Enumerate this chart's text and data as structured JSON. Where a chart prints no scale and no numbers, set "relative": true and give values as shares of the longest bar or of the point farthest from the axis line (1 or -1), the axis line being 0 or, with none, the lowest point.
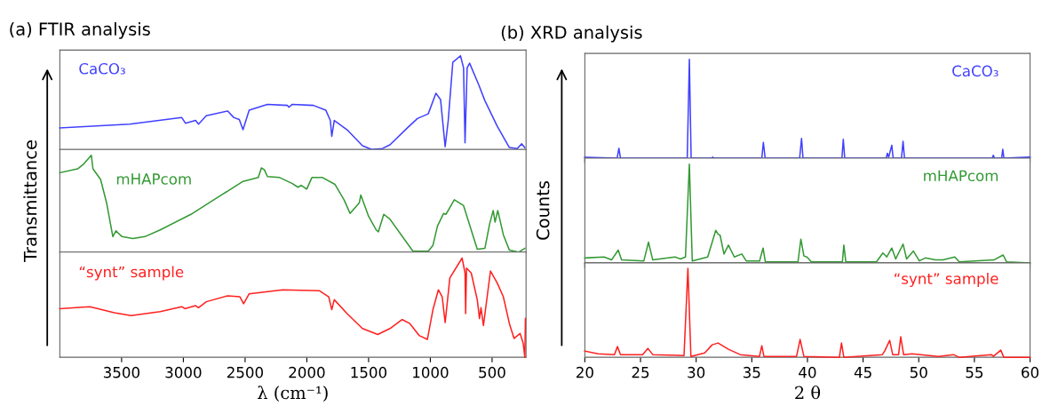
{
  "chart_data": [
    {
      "type": "line",
      "relative": true,
      "title": "(a) FTIR analysis",
      "xlim": [
        4000,
        225
      ],
      "xticks": [
        3500,
        3000,
        2500,
        2000,
        1500,
        1000,
        500
      ],
      "tick_labels": false,
      "series": [
        {
          "name": "CaCO₃",
          "color": "#4040ff",
          "x": [
            4000,
            3435,
            3013,
            2983,
            2901,
            2877,
            2814,
            2641,
            2591,
            2547,
            2517,
            2467,
            2319,
            2157,
            2145,
            2120,
            1947,
            1847,
            1810,
            1798,
            1778,
            1674,
            1550,
            1475,
            1388,
            1327,
            1178,
            1104,
            1017,
            955,
            917,
            880,
            855,
            818,
            756,
            731,
            719,
            702,
            682,
            608,
            558,
            459,
            360,
            297,
            260,
            235
          ],
          "values": [
            0.23,
            0.27,
            0.34,
            0.28,
            0.31,
            0.27,
            0.36,
            0.41,
            0.34,
            0.32,
            0.21,
            0.42,
            0.48,
            0.47,
            0.45,
            0.48,
            0.47,
            0.42,
            0.31,
            0.14,
            0.31,
            0.21,
            0.04,
            0,
            0.01,
            0.05,
            0.24,
            0.33,
            0.38,
            0.6,
            0.53,
            0.03,
            0.31,
            0.93,
            1.0,
            0.87,
            0.07,
            0.87,
            0.92,
            0.69,
            0.52,
            0.25,
            0.02,
            0.01,
            0.06,
            0.02
          ]
        }
      ]
    },
    {
      "type": "line",
      "relative": true,
      "ylabel": "Transmittance",
      "xlim": [
        4000,
        225
      ],
      "xticks": [
        3500,
        3000,
        2500,
        2000,
        1500,
        1000,
        500
      ],
      "tick_labels": false,
      "series": [
        {
          "name": "mHAPcom",
          "color": "#339933",
          "x": [
            4000,
            3856,
            3807,
            3745,
            3732,
            3670,
            3620,
            3571,
            3546,
            3497,
            3410,
            3311,
            3187,
            2939,
            2691,
            2517,
            2393,
            2368,
            2344,
            2319,
            2220,
            2121,
            2071,
            2046,
            2001,
            1959,
            1873,
            1773,
            1699,
            1650,
            1575,
            1563,
            1500,
            1439,
            1421,
            1377,
            1327,
            1141,
            1017,
            979,
            942,
            892,
            874,
            806,
            731,
            657,
            620,
            558,
            520,
            491,
            476,
            454,
            409,
            360,
            285,
            235
          ],
          "values": [
            0.82,
            0.86,
            0.91,
            1.0,
            0.86,
            0.75,
            0.5,
            0.16,
            0.22,
            0.16,
            0.14,
            0.16,
            0.23,
            0.39,
            0.59,
            0.73,
            0.77,
            0.87,
            0.85,
            0.78,
            0.77,
            0.71,
            0.67,
            0.69,
            0.65,
            0.77,
            0.77,
            0.7,
            0.54,
            0.4,
            0.51,
            0.59,
            0.37,
            0.23,
            0.21,
            0.39,
            0.34,
            0.01,
            0.01,
            0.07,
            0.27,
            0.4,
            0.39,
            0.54,
            0.48,
            0.18,
            0.03,
            0.04,
            0.29,
            0.43,
            0.31,
            0.43,
            0.18,
            0.02,
            0,
            0.04
          ]
        }
      ]
    },
    {
      "type": "line",
      "relative": true,
      "xlabel": "λ (cm⁻¹)",
      "xlim": [
        4000,
        225
      ],
      "xticks": [
        3500,
        3000,
        2500,
        2000,
        1500,
        1000,
        500
      ],
      "tick_labels": "x",
      "series": [
        {
          "name": "“synt” sample",
          "color": "#ff2020",
          "x": [
            4000,
            3757,
            3559,
            3423,
            3187,
            3013,
            2988,
            2901,
            2877,
            2814,
            2641,
            2542,
            2512,
            2467,
            2195,
            1897,
            1823,
            1798,
            1778,
            1674,
            1550,
            1426,
            1327,
            1228,
            1166,
            1091,
            1024,
            979,
            935,
            904,
            880,
            842,
            743,
            719,
            714,
            707,
            669,
            620,
            602,
            590,
            570,
            513,
            459,
            409,
            360,
            322,
            273,
            248,
            235,
            230
          ],
          "values": [
            0.49,
            0.51,
            0.45,
            0.42,
            0.46,
            0.51,
            0.49,
            0.52,
            0.5,
            0.56,
            0.62,
            0.61,
            0.54,
            0.64,
            0.68,
            0.67,
            0.61,
            0.48,
            0.58,
            0.44,
            0.29,
            0.23,
            0.29,
            0.38,
            0.34,
            0.22,
            0.18,
            0.48,
            0.68,
            0.61,
            0.35,
            0.8,
            1.0,
            0.85,
            0.44,
            0.9,
            0.85,
            0.58,
            0.39,
            0.5,
            0.32,
            0.87,
            0.75,
            0.61,
            0.34,
            0.19,
            0.24,
            0.14,
            0,
            0.39
          ]
        }
      ]
    },
    {
      "type": "line",
      "relative": true,
      "title": "(b) XRD analysis",
      "xlim": [
        20,
        60
      ],
      "xticks": [
        20,
        25,
        30,
        35,
        40,
        45,
        50,
        55,
        60
      ],
      "tick_labels": false,
      "series": [
        {
          "name": "CaCO₃",
          "color": "#4040ff",
          "x": [
            20,
            22.9,
            23.06,
            23.2,
            29.2,
            29.39,
            29.55,
            31.4,
            31.49,
            31.6,
            35.9,
            36.04,
            36.2,
            39.3,
            39.47,
            39.6,
            43.1,
            43.22,
            43.35,
            47.08,
            47.18,
            47.3,
            47.58,
            47.7,
            48.45,
            48.59,
            48.72,
            56.6,
            56.7,
            56.8,
            57.45,
            57.55,
            57.65,
            60
          ],
          "values": [
            0.01,
            0,
            0.1,
            0,
            0,
            1.0,
            0,
            0,
            0.01,
            0,
            0,
            0.16,
            0,
            0,
            0.2,
            0,
            0,
            0.19,
            0,
            0,
            0.05,
            0.01,
            0.13,
            0,
            0,
            0.17,
            0,
            0,
            0.03,
            0,
            0,
            0.09,
            0,
            0.01
          ]
        }
      ]
    },
    {
      "type": "line",
      "relative": true,
      "ylabel": "Counts",
      "xlim": [
        20,
        60
      ],
      "xticks": [
        20,
        25,
        30,
        35,
        40,
        45,
        50,
        55,
        60
      ],
      "tick_labels": false,
      "series": [
        {
          "name": "mHAPcom",
          "color": "#339933",
          "x": [
            20,
            21.73,
            22.4,
            23.0,
            23.3,
            25.3,
            25.72,
            26.1,
            28.1,
            28.6,
            29.04,
            29.39,
            29.65,
            31.04,
            31.76,
            31.97,
            32.15,
            32.5,
            32.9,
            33.43,
            34.1,
            34.5,
            35.7,
            36.01,
            36.22,
            39.15,
            39.41,
            39.68,
            39.95,
            40.35,
            43.14,
            43.27,
            43.45,
            46.2,
            46.78,
            47.13,
            47.58,
            47.93,
            48.59,
            48.91,
            49.52,
            50.05,
            50.59,
            51.5,
            52.17,
            53.24,
            53.64,
            56.76,
            57.58,
            57.9,
            60
          ],
          "values": [
            0.05,
            0.06,
            0.03,
            0.13,
            0.03,
            0.02,
            0.21,
            0.03,
            0.06,
            0.04,
            0.06,
            1.0,
            0.02,
            0.06,
            0.33,
            0.29,
            0.28,
            0.09,
            0.18,
            0.06,
            0.09,
            0.02,
            0.02,
            0.15,
            0.01,
            0.01,
            0.24,
            0.07,
            0.06,
            0.01,
            0.01,
            0.18,
            0.01,
            0.01,
            0.1,
            0.06,
            0.15,
            0.04,
            0.19,
            0.04,
            0.12,
            0.02,
            0.05,
            0.03,
            0.03,
            0.06,
            0.01,
            0.03,
            0.08,
            0.01,
            0
          ]
        }
      ]
    },
    {
      "type": "line",
      "relative": true,
      "xlabel": "2 θ",
      "xlim": [
        20,
        60
      ],
      "xticks": [
        20,
        25,
        30,
        35,
        40,
        45,
        50,
        55,
        60
      ],
      "tick_labels": "x",
      "series": [
        {
          "name": "“synt” sample",
          "color": "#ff2020",
          "x": [
            20,
            21.2,
            22.66,
            22.93,
            23.2,
            25.19,
            25.66,
            26.1,
            28.91,
            29.26,
            29.53,
            30.77,
            31.44,
            31.97,
            32.9,
            33.96,
            35.69,
            35.9,
            36.09,
            39.02,
            39.34,
            39.68,
            42.87,
            43.06,
            43.27,
            46.73,
            46.94,
            47.39,
            47.66,
            48.19,
            48.38,
            48.64,
            49.39,
            51.78,
            53.11,
            53.64,
            56.52,
            56.71,
            57.37,
            57.64,
            60
          ],
          "values": [
            0.07,
            0.04,
            0.03,
            0.12,
            0.03,
            0.03,
            0.1,
            0.03,
            0.02,
            1.0,
            0.01,
            0.05,
            0.14,
            0.16,
            0.09,
            0.03,
            0.01,
            0.13,
            0.01,
            0.01,
            0.2,
            0.01,
            0.0,
            0.16,
            0.0,
            0.03,
            0.07,
            0.19,
            0.03,
            0.03,
            0.23,
            0.03,
            0.04,
            0.01,
            0.03,
            0.0,
            0.03,
            0.01,
            0.08,
            0.0,
            0
          ]
        }
      ]
    }
  ]
}
